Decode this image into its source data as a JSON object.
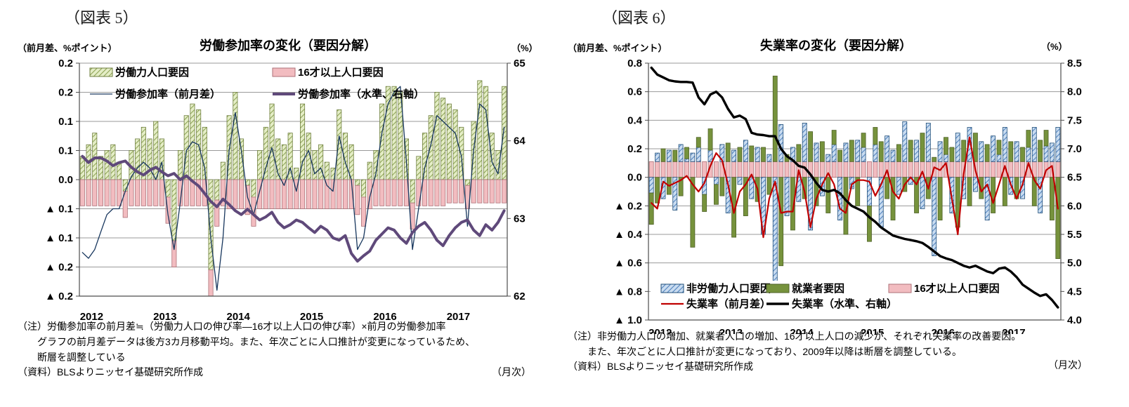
{
  "fig5": {
    "heading": "（図表 5）",
    "left_axis_caption": "（前月差、%ポイント）",
    "title": "労働参加率の変化（要因分解）",
    "right_axis_caption": "（%）",
    "notes": [
      "（注）労働参加率の前月差≒（労働力人口の伸び率―16才以上人口の伸び率）×前月の労働参加率",
      "グラフの前月差データは後方3カ月移動平均。また、年次ごとに人口推計が変更になっているため、",
      "断層を調整している"
    ],
    "source": "（資料）BLSよりニッセイ基礎研究所作成",
    "frequency": "（月次）"
  },
  "fig6": {
    "heading": "（図表 6）",
    "left_axis_caption": "（前月差、%ポイント）",
    "title": "失業率の変化（要因分解）",
    "right_axis_caption": "（%）",
    "notes": [
      "（注）非労働力人口の増加、就業者人口の増加、16才以上人口の減少が、それぞれ失業率の改善要因。",
      "また、年次ごとに人口推計が変更になっており、2009年以降は断層を調整している。"
    ],
    "source": "（資料）BLSよりニッセイ基礎研究所作成",
    "frequency": "（月次）"
  },
  "colors": {
    "gridline": "#9a9a9a",
    "axis": "#4d4d4d",
    "background": "#ffffff"
  },
  "chart_data": [
    {
      "id": "fig5",
      "type": "bar+line combo (stacked monthly bars, 2 lines)",
      "title": "労働参加率の変化（要因分解）",
      "x_unit": "month",
      "x_range": "2012-01 .. 2017-10",
      "months": 70,
      "x_tick_years": [
        "2012",
        "2013",
        "2014",
        "2015",
        "2016",
        "2017"
      ],
      "ylim_left": [
        -0.2,
        0.2
      ],
      "ylim_right": [
        62,
        65
      ],
      "left_tick_labels": [
        "0.2",
        "0.2",
        "0.1",
        "0.1",
        "0.0",
        "▲ 0.1",
        "▲ 0.1",
        "▲ 0.2",
        "▲ 0.2"
      ],
      "right_tick_labels": [
        "65",
        "64",
        "63",
        "62"
      ],
      "grid": true,
      "legend_position": "top-inside",
      "series": [
        {
          "name": "労働力人口要因",
          "type": "bar",
          "style": "hatched",
          "color": "#e4edc6",
          "hatch": "#8da355",
          "stroke": "#6f7f3f",
          "values": [
            0.04,
            0.06,
            0.08,
            0.04,
            0.05,
            0.06,
            0.03,
            -0.02,
            0.05,
            0.07,
            0.09,
            0.07,
            0.1,
            0.07,
            -0.03,
            -0.105,
            0.05,
            0.11,
            0.13,
            0.12,
            0.09,
            -0.155,
            -0.035,
            0.03,
            0.11,
            0.15,
            0.07,
            -0.01,
            -0.03,
            0.05,
            0.09,
            0.13,
            0.07,
            0.06,
            0.08,
            0.02,
            0.13,
            0.08,
            0.05,
            0.06,
            0.03,
            0.02,
            0.12,
            0.08,
            0.06,
            -0.01,
            -0.03,
            0.03,
            0.05,
            0.13,
            0.16,
            0.16,
            0.15,
            0.07,
            -0.04,
            0.04,
            0.08,
            0.11,
            0.15,
            0.14,
            0.13,
            0.12,
            0.09,
            -0.01,
            0.1,
            0.17,
            0.16,
            0.08,
            0.05,
            0.16
          ]
        },
        {
          "name": "16才以上人口要因",
          "type": "bar",
          "style": "solid",
          "color": "#f2bcc0",
          "stroke": "#ad7278",
          "values": [
            -0.045,
            -0.045,
            -0.045,
            -0.045,
            -0.045,
            -0.045,
            -0.045,
            -0.045,
            -0.045,
            -0.045,
            -0.045,
            -0.045,
            -0.045,
            -0.045,
            -0.045,
            -0.045,
            -0.045,
            -0.045,
            -0.045,
            -0.045,
            -0.045,
            -0.045,
            -0.045,
            -0.045,
            -0.05,
            -0.05,
            -0.05,
            -0.05,
            -0.05,
            -0.05,
            -0.05,
            -0.05,
            -0.05,
            -0.05,
            -0.05,
            -0.05,
            -0.05,
            -0.05,
            -0.05,
            -0.05,
            -0.05,
            -0.05,
            -0.05,
            -0.05,
            -0.05,
            -0.05,
            -0.05,
            -0.05,
            -0.045,
            -0.045,
            -0.045,
            -0.045,
            -0.045,
            -0.045,
            -0.045,
            -0.045,
            -0.045,
            -0.045,
            -0.045,
            -0.045,
            -0.04,
            -0.04,
            -0.04,
            -0.04,
            -0.04,
            -0.04,
            -0.04,
            -0.04,
            -0.04,
            -0.04
          ]
        },
        {
          "name": "労働参加率（前月差）",
          "type": "line",
          "axis": "left",
          "color": "#17365d",
          "width": 1.3,
          "values": [
            -0.125,
            -0.135,
            -0.12,
            -0.09,
            -0.06,
            -0.05,
            -0.05,
            -0.02,
            0.005,
            0.02,
            0.03,
            0.02,
            0.0,
            0.03,
            -0.06,
            -0.12,
            -0.04,
            0.05,
            0.065,
            0.06,
            0.02,
            -0.1,
            -0.19,
            -0.1,
            0.05,
            0.115,
            0.05,
            -0.03,
            -0.06,
            -0.02,
            0.02,
            0.055,
            0.01,
            -0.01,
            0.02,
            -0.02,
            0.03,
            0.05,
            0.01,
            0.02,
            -0.01,
            -0.02,
            0.075,
            0.03,
            0.0,
            -0.12,
            -0.1,
            -0.03,
            0.01,
            0.08,
            0.13,
            0.15,
            0.16,
            0.03,
            -0.12,
            -0.05,
            0.02,
            0.06,
            0.11,
            0.1,
            0.09,
            0.08,
            0.04,
            -0.08,
            0.05,
            0.13,
            0.12,
            0.03,
            0.01,
            0.09
          ]
        },
        {
          "name": "労働参加率（水準、右軸）",
          "type": "line",
          "axis": "right",
          "color": "#5f497a",
          "width": 4,
          "values": [
            63.8,
            63.72,
            63.78,
            63.78,
            63.74,
            63.68,
            63.72,
            63.74,
            63.66,
            63.6,
            63.56,
            63.62,
            63.66,
            63.6,
            63.55,
            63.58,
            63.5,
            63.55,
            63.48,
            63.42,
            63.32,
            63.22,
            63.15,
            63.25,
            63.18,
            63.1,
            63.05,
            63.12,
            63.05,
            62.98,
            63.02,
            63.08,
            62.95,
            62.88,
            62.92,
            62.98,
            62.95,
            62.88,
            62.82,
            62.9,
            62.85,
            62.75,
            62.72,
            62.78,
            62.55,
            62.45,
            62.52,
            62.58,
            62.72,
            62.8,
            62.88,
            62.85,
            62.75,
            62.68,
            62.82,
            62.9,
            62.95,
            62.85,
            62.72,
            62.65,
            62.78,
            62.88,
            62.95,
            62.98,
            62.85,
            62.78,
            62.92,
            62.85,
            62.95,
            63.1
          ]
        }
      ]
    },
    {
      "id": "fig6",
      "type": "bar+line combo (stacked monthly bars, 2 lines)",
      "title": "失業率の変化（要因分解）",
      "x_unit": "month",
      "x_range": "2012-01 .. 2017-10",
      "months": 70,
      "x_tick_years": [
        "2012",
        "2013",
        "2014",
        "2015",
        "2016",
        "2017"
      ],
      "ylim_left": [
        -1.0,
        0.8
      ],
      "ylim_right": [
        4.0,
        8.5
      ],
      "left_tick_labels": [
        "0.8",
        "0.6",
        "0.4",
        "0.2",
        "0.0",
        "▲ 0.2",
        "▲ 0.4",
        "▲ 0.6",
        "▲ 0.8",
        "▲ 1.0"
      ],
      "right_tick_labels": [
        "8.5",
        "8.0",
        "7.5",
        "7.0",
        "6.5",
        "6.0",
        "5.5",
        "5.0",
        "4.5",
        "4.0"
      ],
      "grid": true,
      "legend_position": "bottom-inside",
      "series": [
        {
          "name": "16才以上人口要因",
          "type": "bar",
          "style": "solid",
          "color": "#f2bcc0",
          "stroke": "#ad7278",
          "values": [
            0.11,
            0.11,
            0.11,
            0.11,
            0.11,
            0.11,
            0.11,
            0.11,
            0.11,
            0.11,
            0.11,
            0.11,
            0.11,
            0.11,
            0.11,
            0.11,
            0.11,
            0.11,
            0.11,
            0.11,
            0.11,
            0.11,
            0.11,
            0.11,
            0.11,
            0.11,
            0.11,
            0.11,
            0.11,
            0.11,
            0.11,
            0.11,
            0.11,
            0.11,
            0.11,
            0.11,
            0.11,
            0.11,
            0.11,
            0.11,
            0.11,
            0.11,
            0.11,
            0.11,
            0.11,
            0.11,
            0.11,
            0.11,
            0.11,
            0.11,
            0.11,
            0.11,
            0.11,
            0.11,
            0.11,
            0.11,
            0.11,
            0.11,
            0.11,
            0.11,
            0.11,
            0.11,
            0.11,
            0.11,
            0.11,
            0.11,
            0.11,
            0.11,
            0.11,
            0.11
          ]
        },
        {
          "name": "非労働力人口要因",
          "type": "bar",
          "style": "hatched",
          "color": "#c9dcf0",
          "hatch": "#4f81bd",
          "stroke": "#1f4e79",
          "values": [
            -0.11,
            0.06,
            -0.15,
            0.08,
            -0.23,
            0.12,
            0.02,
            0.06,
            0.1,
            -0.12,
            0.08,
            -0.05,
            0.12,
            -0.25,
            0.08,
            -0.05,
            0.15,
            -0.15,
            0.1,
            -0.4,
            0.05,
            -0.74,
            0.26,
            -0.27,
            0.1,
            -0.17,
            0.27,
            -0.37,
            0.13,
            -0.13,
            0.05,
            0.12,
            -0.3,
            0.13,
            -0.08,
            0.15,
            0.1,
            -0.2,
            0.12,
            -0.35,
            0.18,
            0.08,
            -0.12,
            0.28,
            -0.05,
            0.15,
            -0.22,
            0.27,
            -0.55,
            0.14,
            0.05,
            -0.25,
            0.2,
            -0.15,
            0.24,
            -0.1,
            0.14,
            -0.3,
            0.18,
            0.05,
            0.24,
            -0.12,
            0.14,
            -0.15,
            0.1,
            0.24,
            -0.25,
            0.11,
            0.13,
            0.24
          ]
        },
        {
          "name": "就業者要因",
          "type": "bar",
          "style": "solid",
          "color": "#76923c",
          "stroke": "#4f6228",
          "values": [
            -0.22,
            -0.18,
            0.09,
            -0.12,
            0.08,
            -0.13,
            0.08,
            -0.49,
            0.07,
            -0.12,
            0.15,
            -0.14,
            -0.13,
            0.13,
            -0.42,
            0.1,
            -0.27,
            0.11,
            -0.17,
            0.1,
            -0.12,
            0.6,
            -0.62,
            0.05,
            -0.37,
            0.12,
            -0.15,
            0.21,
            -0.2,
            0.14,
            -0.25,
            0.1,
            0.08,
            -0.4,
            0.15,
            -0.2,
            0.1,
            -0.25,
            0.12,
            0.14,
            -0.15,
            -0.3,
            0.12,
            -0.1,
            0.15,
            -0.25,
            0.2,
            -0.15,
            0.03,
            -0.3,
            0.12,
            0.1,
            -0.35,
            0.15,
            -0.2,
            0.2,
            -0.15,
            0.12,
            -0.25,
            0.1,
            -0.2,
            0.14,
            -0.15,
            0.1,
            0.12,
            -0.2,
            0.15,
            0.11,
            -0.3,
            -0.57
          ]
        },
        {
          "name": "失業率（前月差）",
          "type": "line",
          "axis": "left",
          "color": "#c00000",
          "width": 2.2,
          "values": [
            -0.18,
            -0.22,
            -0.03,
            -0.06,
            -0.04,
            -0.02,
            0.01,
            -0.05,
            -0.1,
            -0.04,
            0.08,
            0.17,
            0.12,
            -0.05,
            -0.25,
            -0.1,
            -0.05,
            0.02,
            -0.08,
            -0.42,
            -0.15,
            -0.03,
            -0.25,
            -0.24,
            -0.24,
            0.05,
            -0.1,
            -0.35,
            -0.15,
            -0.05,
            0.03,
            -0.05,
            -0.22,
            -0.25,
            -0.05,
            -0.02,
            -0.02,
            -0.03,
            -0.13,
            -0.05,
            0.05,
            -0.1,
            -0.15,
            -0.05,
            0.0,
            -0.05,
            0.04,
            -0.08,
            0.07,
            0.05,
            0.1,
            -0.15,
            -0.4,
            0.02,
            0.28,
            0.05,
            -0.1,
            -0.05,
            -0.18,
            -0.05,
            0.08,
            -0.05,
            -0.15,
            -0.05,
            0.1,
            -0.02,
            -0.08,
            0.05,
            0.08,
            -0.22
          ]
        },
        {
          "name": "失業率（水準、右軸）",
          "type": "line",
          "axis": "right",
          "color": "#000000",
          "width": 3.4,
          "values": [
            8.42,
            8.3,
            8.25,
            8.2,
            8.18,
            8.17,
            8.17,
            8.16,
            7.9,
            7.78,
            7.95,
            8.0,
            7.9,
            7.7,
            7.55,
            7.58,
            7.52,
            7.28,
            7.25,
            7.24,
            7.22,
            7.22,
            7.0,
            6.87,
            6.8,
            6.7,
            6.67,
            6.55,
            6.4,
            6.28,
            6.25,
            6.28,
            6.22,
            6.1,
            6.0,
            5.95,
            5.9,
            5.8,
            5.72,
            5.62,
            5.55,
            5.48,
            5.45,
            5.42,
            5.4,
            5.38,
            5.35,
            5.28,
            5.2,
            5.12,
            5.08,
            5.05,
            5.0,
            4.95,
            4.92,
            4.95,
            4.9,
            4.85,
            4.82,
            4.9,
            4.92,
            4.85,
            4.75,
            4.62,
            4.55,
            4.48,
            4.42,
            4.45,
            4.35,
            4.22
          ]
        }
      ]
    }
  ]
}
